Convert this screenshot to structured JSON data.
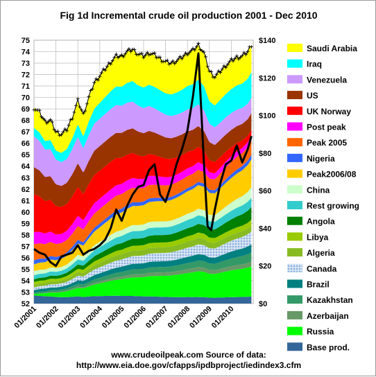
{
  "chart_data": {
    "type": "area",
    "title": "Fig 1d Incremental crude oil production 2001 - Dec 2010",
    "stacking": "stacked",
    "left_axis": {
      "min": 52,
      "max": 75,
      "step": 1,
      "ticks": [
        "52",
        "53",
        "54",
        "55",
        "56",
        "57",
        "58",
        "59",
        "60",
        "61",
        "62",
        "63",
        "64",
        "65",
        "66",
        "67",
        "68",
        "69",
        "70",
        "71",
        "72",
        "73",
        "74",
        "75"
      ]
    },
    "right_axis": {
      "min": 0,
      "max": 140,
      "step": 20,
      "ticks": [
        "$0",
        "$20",
        "$40",
        "$60",
        "$80",
        "$100",
        "$120",
        "$140"
      ]
    },
    "x_axis": {
      "start": "2001-01",
      "end": "2010-12",
      "ticks": [
        "01/2001",
        "01/2002",
        "01/2003",
        "01/2004",
        "01/2005",
        "01/2006",
        "01/2007",
        "01/2008",
        "01/2009",
        "01/2010"
      ]
    },
    "grid": true,
    "legend_position": "right",
    "stack_order_bottom_to_top": [
      "Base prod.",
      "Russia",
      "Azerbaijan",
      "Kazakhstan",
      "Brazil",
      "Canada",
      "Algeria",
      "Libya",
      "Angola",
      "Rest growing",
      "China",
      "Peak2006/08",
      "Nigeria",
      "Peak 2005",
      "Post peak",
      "UK Norway",
      "US",
      "Venezuela",
      "Iraq",
      "Saudi Arabia"
    ],
    "series": [
      {
        "name": "Saudi Arabia",
        "color": "#ffff00",
        "thickness_start": 1.5,
        "thickness_peak": 3.2,
        "thickness_end": 2.3
      },
      {
        "name": "Iraq",
        "color": "#00ffff",
        "thickness_start": 0.6,
        "thickness_peak": 2.3,
        "thickness_end": 2.2
      },
      {
        "name": "Venezuela",
        "color": "#cc99ff",
        "thickness_start": 2.3,
        "thickness_peak": 2.0,
        "thickness_end": 1.3
      },
      {
        "name": "US",
        "color": "#993300",
        "thickness_start": 2.0,
        "thickness_peak": 1.9,
        "thickness_end": 1.4
      },
      {
        "name": "UK Norway",
        "color": "#ff0000",
        "thickness_start": 2.8,
        "thickness_peak": 1.4,
        "thickness_end": 0.5
      },
      {
        "name": "Post peak",
        "color": "#ff00ff",
        "thickness_start": 0.9,
        "thickness_peak": 0.7,
        "thickness_end": 0.4
      },
      {
        "name": "Peak 2005",
        "color": "#ff6600",
        "thickness_start": 1.2,
        "thickness_peak": 1.1,
        "thickness_end": 1.2
      },
      {
        "name": "Nigeria",
        "color": "#3366ff",
        "thickness_start": 0.3,
        "thickness_peak": 0.3,
        "thickness_end": 0.4
      },
      {
        "name": "Peak2006/08",
        "color": "#ffcc00",
        "thickness_start": 0.5,
        "thickness_peak": 2.2,
        "thickness_end": 2.4
      },
      {
        "name": "China",
        "color": "#ccffcc",
        "thickness_start": 0.3,
        "thickness_peak": 0.6,
        "thickness_end": 0.9
      },
      {
        "name": "Rest growing",
        "color": "#33cccc",
        "thickness_start": 0.3,
        "thickness_peak": 0.8,
        "thickness_end": 0.8
      },
      {
        "name": "Angola",
        "color": "#008000",
        "thickness_start": 0.2,
        "thickness_peak": 0.8,
        "thickness_end": 1.1
      },
      {
        "name": "Libya",
        "color": "#99cc00",
        "thickness_start": 0.2,
        "thickness_peak": 0.5,
        "thickness_end": 0.5
      },
      {
        "name": "Algeria",
        "color": "#88bb22",
        "thickness_start": 0.2,
        "thickness_peak": 0.6,
        "thickness_end": 0.5
      },
      {
        "name": "Canada",
        "color": "#c5d9f1",
        "pattern": "dots",
        "thickness_start": 0.2,
        "thickness_peak": 0.9,
        "thickness_end": 1.1
      },
      {
        "name": "Brazil",
        "color": "#008080",
        "thickness_start": 0.2,
        "thickness_peak": 0.6,
        "thickness_end": 0.7
      },
      {
        "name": "Kazakhstan",
        "color": "#339966",
        "thickness_start": 0.1,
        "thickness_peak": 0.6,
        "thickness_end": 0.8
      },
      {
        "name": "Azerbaijan",
        "color": "#669966",
        "thickness_start": 0.0,
        "thickness_peak": 0.4,
        "thickness_end": 0.4
      },
      {
        "name": "Russia",
        "color": "#00ff00",
        "thickness_start": 0.1,
        "thickness_peak": 2.4,
        "thickness_end": 2.6
      },
      {
        "name": "Base prod.",
        "color": "#336699",
        "thickness_start": 0.6,
        "thickness_peak": 0.6,
        "thickness_end": 0.6
      }
    ],
    "total_points": [
      [
        "2001-01",
        69.1
      ],
      [
        "2001-04",
        68.7
      ],
      [
        "2001-07",
        67.9
      ],
      [
        "2001-10",
        68.0
      ],
      [
        "2002-01",
        67.0
      ],
      [
        "2002-04",
        66.8
      ],
      [
        "2002-07",
        67.2
      ],
      [
        "2002-10",
        68.3
      ],
      [
        "2003-01",
        69.7
      ],
      [
        "2003-04",
        68.5
      ],
      [
        "2003-07",
        70.0
      ],
      [
        "2003-10",
        71.3
      ],
      [
        "2004-01",
        71.9
      ],
      [
        "2004-04",
        72.5
      ],
      [
        "2004-07",
        73.1
      ],
      [
        "2004-10",
        73.6
      ],
      [
        "2005-01",
        73.6
      ],
      [
        "2005-04",
        74.0
      ],
      [
        "2005-07",
        74.2
      ],
      [
        "2005-10",
        73.8
      ],
      [
        "2006-01",
        73.6
      ],
      [
        "2006-04",
        73.9
      ],
      [
        "2006-07",
        73.7
      ],
      [
        "2006-10",
        73.4
      ],
      [
        "2007-01",
        73.1
      ],
      [
        "2007-04",
        73.0
      ],
      [
        "2007-07",
        73.2
      ],
      [
        "2007-10",
        73.5
      ],
      [
        "2008-01",
        73.9
      ],
      [
        "2008-04",
        74.1
      ],
      [
        "2008-07",
        74.6
      ],
      [
        "2008-10",
        73.9
      ],
      [
        "2009-01",
        72.3
      ],
      [
        "2009-04",
        71.8
      ],
      [
        "2009-07",
        72.3
      ],
      [
        "2009-10",
        72.8
      ],
      [
        "2010-01",
        73.2
      ],
      [
        "2010-04",
        73.5
      ],
      [
        "2010-07",
        73.6
      ],
      [
        "2010-10",
        74.0
      ],
      [
        "2010-12",
        74.6
      ]
    ],
    "price_series": {
      "axis": "right",
      "color": "#000000",
      "points": [
        [
          "2001-01",
          29
        ],
        [
          "2001-04",
          27
        ],
        [
          "2001-07",
          26
        ],
        [
          "2001-10",
          22
        ],
        [
          "2002-01",
          20
        ],
        [
          "2002-04",
          25
        ],
        [
          "2002-07",
          26
        ],
        [
          "2002-10",
          27
        ],
        [
          "2003-01",
          31
        ],
        [
          "2003-04",
          26
        ],
        [
          "2003-07",
          28
        ],
        [
          "2003-10",
          29
        ],
        [
          "2004-01",
          31
        ],
        [
          "2004-04",
          34
        ],
        [
          "2004-07",
          40
        ],
        [
          "2004-10",
          50
        ],
        [
          "2005-01",
          44
        ],
        [
          "2005-04",
          52
        ],
        [
          "2005-07",
          58
        ],
        [
          "2005-10",
          62
        ],
        [
          "2006-01",
          63
        ],
        [
          "2006-04",
          71
        ],
        [
          "2006-07",
          74
        ],
        [
          "2006-10",
          58
        ],
        [
          "2007-01",
          54
        ],
        [
          "2007-04",
          63
        ],
        [
          "2007-07",
          74
        ],
        [
          "2007-10",
          82
        ],
        [
          "2008-01",
          92
        ],
        [
          "2008-04",
          110
        ],
        [
          "2008-07",
          133
        ],
        [
          "2008-10",
          75
        ],
        [
          "2008-12",
          41
        ],
        [
          "2009-02",
          39
        ],
        [
          "2009-04",
          50
        ],
        [
          "2009-07",
          64
        ],
        [
          "2009-10",
          74
        ],
        [
          "2010-01",
          76
        ],
        [
          "2010-04",
          84
        ],
        [
          "2010-07",
          75
        ],
        [
          "2010-10",
          82
        ],
        [
          "2010-12",
          89
        ]
      ]
    }
  },
  "footer": {
    "line1": "www.crudeoilpeak.com           Source of data:",
    "line2": "http://www.eia.doe.gov/cfapps/ipdbproject/iedindex3.cfm"
  }
}
